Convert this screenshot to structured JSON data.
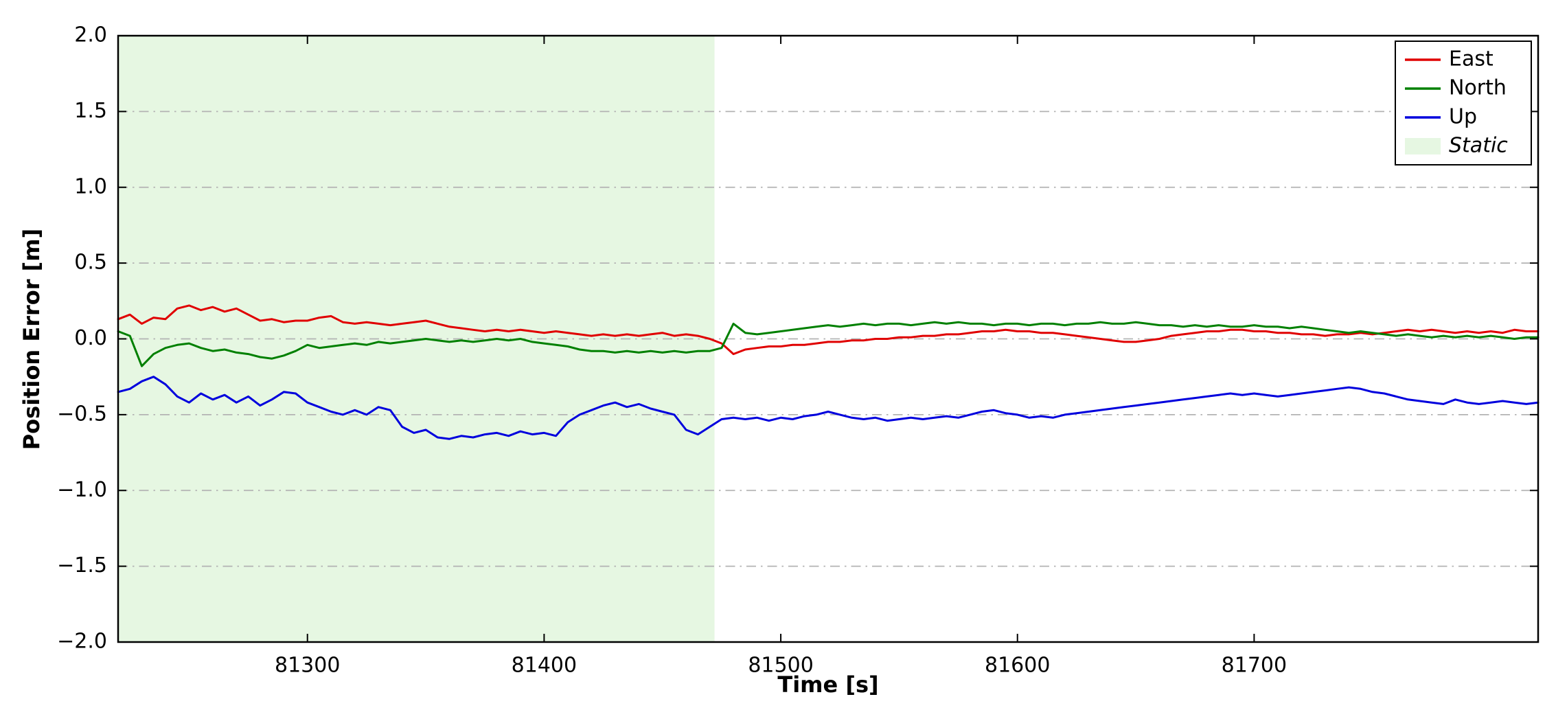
{
  "figure": {
    "background": "#ffffff"
  },
  "chart_data": {
    "type": "line",
    "title": "",
    "xlabel": "Time [s]",
    "ylabel": "Position Error [m]",
    "xlim": [
      81220,
      81820
    ],
    "ylim": [
      -2.0,
      2.0
    ],
    "grid": "horizontal dash-dot",
    "grid_color": "#b3b3b3",
    "legend_position": "upper right",
    "x_start": 81220,
    "x_step": 5,
    "x_ticks": [
      {
        "value": 81300,
        "label": "81300"
      },
      {
        "value": 81400,
        "label": "81400"
      },
      {
        "value": 81500,
        "label": "81500"
      },
      {
        "value": 81600,
        "label": "81600"
      },
      {
        "value": 81700,
        "label": "81700"
      }
    ],
    "y_ticks": [
      {
        "value": 2.0,
        "label": "2.0"
      },
      {
        "value": 1.5,
        "label": "1.5"
      },
      {
        "value": 1.0,
        "label": "1.0"
      },
      {
        "value": 0.5,
        "label": "0.5"
      },
      {
        "value": 0.0,
        "label": "0.0"
      },
      {
        "value": -0.5,
        "label": "−0.5"
      },
      {
        "value": -1.0,
        "label": "−1.0"
      },
      {
        "value": -1.5,
        "label": "−1.5"
      },
      {
        "value": -2.0,
        "label": "−2.0"
      }
    ],
    "y_grid": [
      1.5,
      1.0,
      0.5,
      0.0,
      -0.5,
      -1.0,
      -1.5
    ],
    "static_region": {
      "x0": 81220,
      "x1": 81472,
      "fill": "#e6f7e2",
      "label": "Static"
    },
    "series": [
      {
        "name": "East",
        "color": "#e00000",
        "values": [
          0.13,
          0.16,
          0.1,
          0.14,
          0.13,
          0.2,
          0.22,
          0.19,
          0.21,
          0.18,
          0.2,
          0.16,
          0.12,
          0.13,
          0.11,
          0.12,
          0.12,
          0.14,
          0.15,
          0.11,
          0.1,
          0.11,
          0.1,
          0.09,
          0.1,
          0.11,
          0.12,
          0.1,
          0.08,
          0.07,
          0.06,
          0.05,
          0.06,
          0.05,
          0.06,
          0.05,
          0.04,
          0.05,
          0.04,
          0.03,
          0.02,
          0.03,
          0.02,
          0.03,
          0.02,
          0.03,
          0.04,
          0.02,
          0.03,
          0.02,
          0.0,
          -0.03,
          -0.1,
          -0.07,
          -0.06,
          -0.05,
          -0.05,
          -0.04,
          -0.04,
          -0.03,
          -0.02,
          -0.02,
          -0.01,
          -0.01,
          0.0,
          0.0,
          0.01,
          0.01,
          0.02,
          0.02,
          0.03,
          0.03,
          0.04,
          0.05,
          0.05,
          0.06,
          0.05,
          0.05,
          0.04,
          0.04,
          0.03,
          0.02,
          0.01,
          0.0,
          -0.01,
          -0.02,
          -0.02,
          -0.01,
          0.0,
          0.02,
          0.03,
          0.04,
          0.05,
          0.05,
          0.06,
          0.06,
          0.05,
          0.05,
          0.04,
          0.04,
          0.03,
          0.03,
          0.02,
          0.03,
          0.03,
          0.04,
          0.03,
          0.04,
          0.05,
          0.06,
          0.05,
          0.06,
          0.05,
          0.04,
          0.05,
          0.04,
          0.05,
          0.04,
          0.06,
          0.05,
          0.05
        ]
      },
      {
        "name": "North",
        "color": "#008000",
        "values": [
          0.05,
          0.02,
          -0.18,
          -0.1,
          -0.06,
          -0.04,
          -0.03,
          -0.06,
          -0.08,
          -0.07,
          -0.09,
          -0.1,
          -0.12,
          -0.13,
          -0.11,
          -0.08,
          -0.04,
          -0.06,
          -0.05,
          -0.04,
          -0.03,
          -0.04,
          -0.02,
          -0.03,
          -0.02,
          -0.01,
          0.0,
          -0.01,
          -0.02,
          -0.01,
          -0.02,
          -0.01,
          0.0,
          -0.01,
          0.0,
          -0.02,
          -0.03,
          -0.04,
          -0.05,
          -0.07,
          -0.08,
          -0.08,
          -0.09,
          -0.08,
          -0.09,
          -0.08,
          -0.09,
          -0.08,
          -0.09,
          -0.08,
          -0.08,
          -0.06,
          0.1,
          0.04,
          0.03,
          0.04,
          0.05,
          0.06,
          0.07,
          0.08,
          0.09,
          0.08,
          0.09,
          0.1,
          0.09,
          0.1,
          0.1,
          0.09,
          0.1,
          0.11,
          0.1,
          0.11,
          0.1,
          0.1,
          0.09,
          0.1,
          0.1,
          0.09,
          0.1,
          0.1,
          0.09,
          0.1,
          0.1,
          0.11,
          0.1,
          0.1,
          0.11,
          0.1,
          0.09,
          0.09,
          0.08,
          0.09,
          0.08,
          0.09,
          0.08,
          0.08,
          0.09,
          0.08,
          0.08,
          0.07,
          0.08,
          0.07,
          0.06,
          0.05,
          0.04,
          0.05,
          0.04,
          0.03,
          0.02,
          0.03,
          0.02,
          0.01,
          0.02,
          0.01,
          0.02,
          0.01,
          0.02,
          0.01,
          0.0,
          0.01,
          0.01
        ]
      },
      {
        "name": "Up",
        "color": "#0000dd",
        "values": [
          -0.35,
          -0.33,
          -0.28,
          -0.25,
          -0.3,
          -0.38,
          -0.42,
          -0.36,
          -0.4,
          -0.37,
          -0.42,
          -0.38,
          -0.44,
          -0.4,
          -0.35,
          -0.36,
          -0.42,
          -0.45,
          -0.48,
          -0.5,
          -0.47,
          -0.5,
          -0.45,
          -0.47,
          -0.58,
          -0.62,
          -0.6,
          -0.65,
          -0.66,
          -0.64,
          -0.65,
          -0.63,
          -0.62,
          -0.64,
          -0.61,
          -0.63,
          -0.62,
          -0.64,
          -0.55,
          -0.5,
          -0.47,
          -0.44,
          -0.42,
          -0.45,
          -0.43,
          -0.46,
          -0.48,
          -0.5,
          -0.6,
          -0.63,
          -0.58,
          -0.53,
          -0.52,
          -0.53,
          -0.52,
          -0.54,
          -0.52,
          -0.53,
          -0.51,
          -0.5,
          -0.48,
          -0.5,
          -0.52,
          -0.53,
          -0.52,
          -0.54,
          -0.53,
          -0.52,
          -0.53,
          -0.52,
          -0.51,
          -0.52,
          -0.5,
          -0.48,
          -0.47,
          -0.49,
          -0.5,
          -0.52,
          -0.51,
          -0.52,
          -0.5,
          -0.49,
          -0.48,
          -0.47,
          -0.46,
          -0.45,
          -0.44,
          -0.43,
          -0.42,
          -0.41,
          -0.4,
          -0.39,
          -0.38,
          -0.37,
          -0.36,
          -0.37,
          -0.36,
          -0.37,
          -0.38,
          -0.37,
          -0.36,
          -0.35,
          -0.34,
          -0.33,
          -0.32,
          -0.33,
          -0.35,
          -0.36,
          -0.38,
          -0.4,
          -0.41,
          -0.42,
          -0.43,
          -0.4,
          -0.42,
          -0.43,
          -0.42,
          -0.41,
          -0.42,
          -0.43,
          -0.42
        ]
      }
    ],
    "legend": {
      "items": [
        {
          "type": "line",
          "label": "East",
          "color": "#e00000",
          "italic": false
        },
        {
          "type": "line",
          "label": "North",
          "color": "#008000",
          "italic": false
        },
        {
          "type": "line",
          "label": "Up",
          "color": "#0000dd",
          "italic": false
        },
        {
          "type": "patch",
          "label": "Static",
          "color": "#e6f7e2",
          "italic": true
        }
      ]
    }
  }
}
